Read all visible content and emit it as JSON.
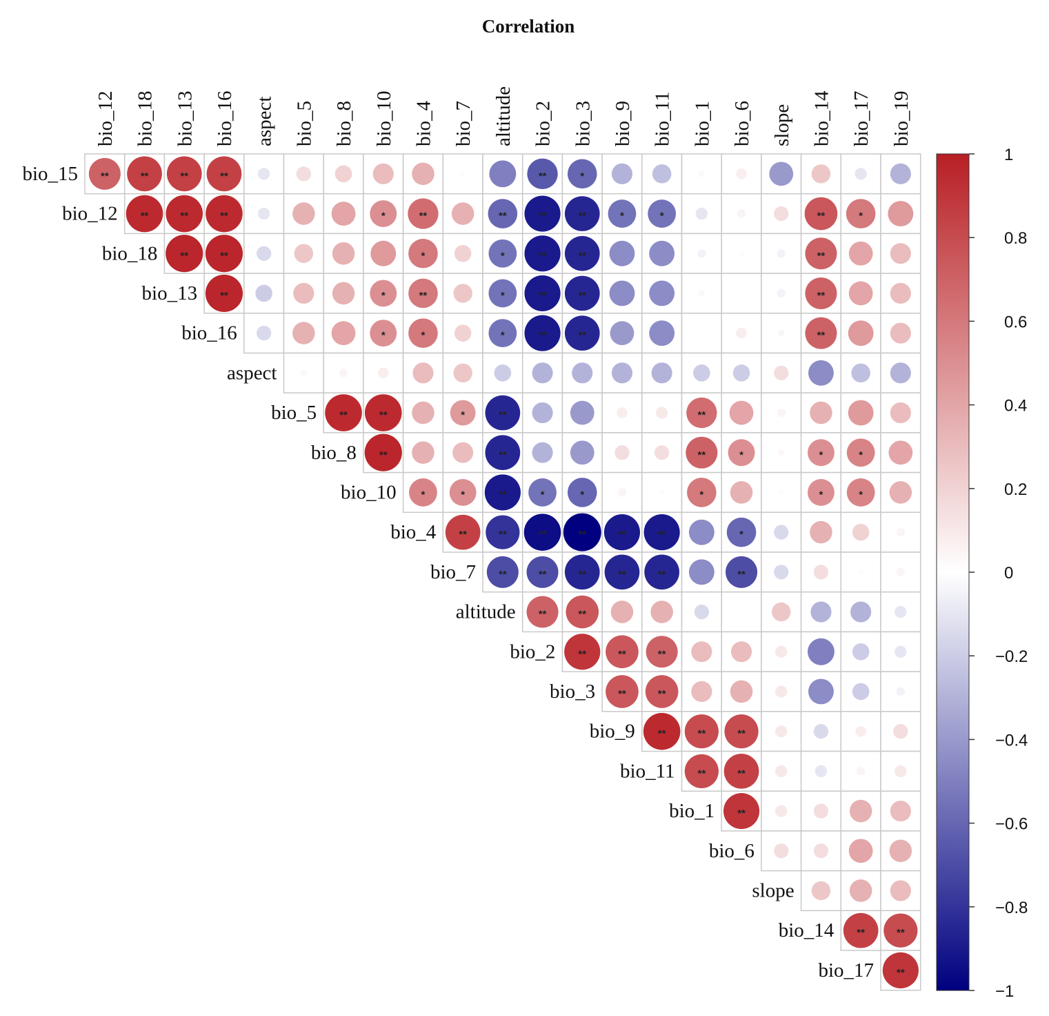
{
  "chart_data": {
    "type": "heatmap",
    "title": "Correlation",
    "columns": [
      "bio_12",
      "bio_18",
      "bio_13",
      "bio_16",
      "aspect",
      "bio_5",
      "bio_8",
      "bio_10",
      "bio_4",
      "bio_7",
      "altitude",
      "bio_2",
      "bio_3",
      "bio_9",
      "bio_11",
      "bio_1",
      "bio_6",
      "slope",
      "bio_14",
      "bio_17",
      "bio_19"
    ],
    "rows": [
      "bio_15",
      "bio_12",
      "bio_18",
      "bio_13",
      "bio_16",
      "aspect",
      "bio_5",
      "bio_8",
      "bio_10",
      "bio_4",
      "bio_7",
      "altitude",
      "bio_2",
      "bio_3",
      "bio_9",
      "bio_11",
      "bio_1",
      "bio_6",
      "slope",
      "bio_14",
      "bio_17"
    ],
    "note": "upper triangle: row i holds values for columns i..20",
    "values": [
      [
        0.7,
        0.85,
        0.85,
        0.85,
        -0.1,
        0.15,
        0.2,
        0.3,
        0.35,
        0.02,
        -0.5,
        -0.65,
        -0.6,
        -0.3,
        -0.25,
        0.03,
        0.08,
        -0.4,
        0.25,
        -0.1,
        -0.3
      ],
      [
        0.95,
        0.95,
        0.95,
        -0.1,
        0.35,
        0.4,
        0.5,
        0.65,
        0.35,
        -0.6,
        -0.9,
        -0.85,
        -0.55,
        -0.55,
        -0.1,
        0.05,
        0.15,
        0.75,
        0.6,
        0.45
      ],
      [
        0.97,
        0.97,
        -0.15,
        0.25,
        0.35,
        0.45,
        0.6,
        0.2,
        -0.55,
        -0.9,
        -0.85,
        -0.45,
        -0.45,
        -0.05,
        0.02,
        -0.05,
        0.7,
        0.4,
        0.3
      ],
      [
        0.97,
        -0.2,
        0.3,
        0.35,
        0.5,
        0.6,
        0.25,
        -0.55,
        -0.9,
        -0.85,
        -0.45,
        -0.45,
        0.03,
        0.01,
        -0.05,
        0.7,
        0.4,
        0.3
      ],
      [
        -0.15,
        0.35,
        0.4,
        0.5,
        0.6,
        0.2,
        -0.55,
        -0.9,
        -0.85,
        -0.4,
        -0.45,
        0.01,
        0.08,
        -0.03,
        0.7,
        0.45,
        0.3
      ],
      [
        0.03,
        0.05,
        0.08,
        0.3,
        0.25,
        -0.2,
        -0.3,
        -0.3,
        -0.3,
        -0.3,
        -0.2,
        -0.2,
        0.15,
        -0.45,
        -0.25,
        -0.3
      ],
      [
        0.95,
        0.95,
        0.35,
        0.45,
        -0.85,
        -0.3,
        -0.4,
        0.08,
        0.1,
        0.65,
        0.4,
        0.05,
        0.35,
        0.45,
        0.3
      ],
      [
        0.97,
        0.35,
        0.3,
        -0.85,
        -0.3,
        -0.4,
        0.15,
        0.15,
        0.7,
        0.5,
        0.03,
        0.5,
        0.55,
        0.4
      ],
      [
        0.55,
        0.5,
        -0.9,
        -0.55,
        -0.6,
        0.05,
        0.02,
        0.6,
        0.35,
        0.02,
        0.5,
        0.55,
        0.35
      ],
      [
        0.85,
        -0.8,
        -0.95,
        -1.0,
        -0.9,
        -0.9,
        -0.45,
        -0.6,
        -0.15,
        0.35,
        0.2,
        0.05
      ],
      [
        -0.7,
        -0.7,
        -0.85,
        -0.85,
        -0.85,
        -0.45,
        -0.7,
        -0.15,
        0.15,
        0.02,
        0.05
      ],
      [
        0.7,
        0.75,
        0.35,
        0.35,
        -0.15,
        0.0,
        0.25,
        -0.3,
        -0.3,
        -0.1
      ],
      [
        0.9,
        0.75,
        0.7,
        0.3,
        0.3,
        0.1,
        -0.5,
        -0.2,
        -0.1
      ],
      [
        0.75,
        0.75,
        0.3,
        0.35,
        0.1,
        -0.45,
        -0.2,
        -0.05
      ],
      [
        0.95,
        0.8,
        0.8,
        0.1,
        -0.15,
        0.08,
        0.15
      ],
      [
        0.8,
        0.85,
        0.1,
        -0.1,
        0.05,
        0.1
      ],
      [
        0.9,
        0.1,
        0.15,
        0.35,
        0.3
      ],
      [
        0.15,
        0.15,
        0.4,
        0.35
      ],
      [
        0.25,
        0.35,
        0.3
      ],
      [
        0.85,
        0.8
      ],
      [
        0.9
      ]
    ],
    "significance": [
      [
        "**",
        "**",
        "**",
        "**",
        "",
        "",
        "",
        "",
        "",
        "",
        "",
        "**",
        "*",
        "",
        "",
        "",
        "",
        "",
        "",
        "",
        ""
      ],
      [
        "**",
        "**",
        "**",
        "",
        "",
        "",
        "*",
        "**",
        "",
        "**",
        "**",
        "**",
        "*",
        "*",
        "",
        "",
        "",
        "**",
        "*",
        ""
      ],
      [
        "**",
        "**",
        "",
        "",
        "",
        "",
        "*",
        "",
        "*",
        "**",
        "**",
        "",
        "",
        "",
        "",
        "",
        "**",
        "",
        ""
      ],
      [
        "**",
        "",
        "",
        "",
        "*",
        "**",
        "",
        "*",
        "**",
        "**",
        "",
        "",
        "",
        "",
        "",
        "**",
        "",
        ""
      ],
      [
        "",
        "",
        "",
        "*",
        "*",
        "",
        "*",
        "**",
        "**",
        "",
        "",
        "",
        "",
        "",
        "**",
        "",
        ""
      ],
      [
        "",
        "",
        "",
        "",
        "",
        "",
        "",
        "",
        "",
        "",
        "",
        "",
        "",
        "",
        "",
        ""
      ],
      [
        "**",
        "**",
        "",
        "*",
        "**",
        "",
        "",
        "",
        "",
        "**",
        "",
        "",
        "",
        "",
        ""
      ],
      [
        "**",
        "",
        "",
        "**",
        "",
        "",
        "",
        "",
        "**",
        "*",
        "",
        "*",
        "*",
        ""
      ],
      [
        "*",
        "*",
        "**",
        "*",
        "*",
        "",
        "",
        "*",
        "",
        "",
        "*",
        "*",
        ""
      ],
      [
        "**",
        "**",
        "**",
        "**",
        "**",
        "**",
        "",
        "*",
        "",
        "",
        "",
        ""
      ],
      [
        "**",
        "**",
        "**",
        "**",
        "**",
        "",
        "**",
        "",
        "",
        "",
        ""
      ],
      [
        "**",
        "**",
        "",
        "",
        "",
        "",
        "",
        "",
        "",
        ""
      ],
      [
        "**",
        "**",
        "**",
        "",
        "",
        "",
        "",
        "",
        ""
      ],
      [
        "**",
        "**",
        "",
        "",
        "",
        "",
        "",
        ""
      ],
      [
        "**",
        "**",
        "**",
        "",
        "",
        "",
        ""
      ],
      [
        "**",
        "**",
        "",
        "",
        "",
        ""
      ],
      [
        "**",
        "",
        "",
        "",
        ""
      ],
      [
        "",
        "",
        "",
        ""
      ],
      [
        "",
        "",
        ""
      ],
      [
        "**",
        "**"
      ],
      [
        "**"
      ]
    ],
    "colorbar": {
      "range": [
        -1,
        1
      ],
      "ticks": [
        "1",
        "0.8",
        "0.6",
        "0.4",
        "0.2",
        "0",
        "−0.2",
        "−0.4",
        "−0.6",
        "−0.8",
        "−1"
      ],
      "tick_values": [
        1,
        0.8,
        0.6,
        0.4,
        0.2,
        0,
        -0.2,
        -0.4,
        -0.6,
        -0.8,
        -1
      ]
    },
    "colors": {
      "negative": "#000080",
      "zero": "#ffffff",
      "positive": "#b81f24",
      "grid": "#c8c8c8"
    }
  }
}
